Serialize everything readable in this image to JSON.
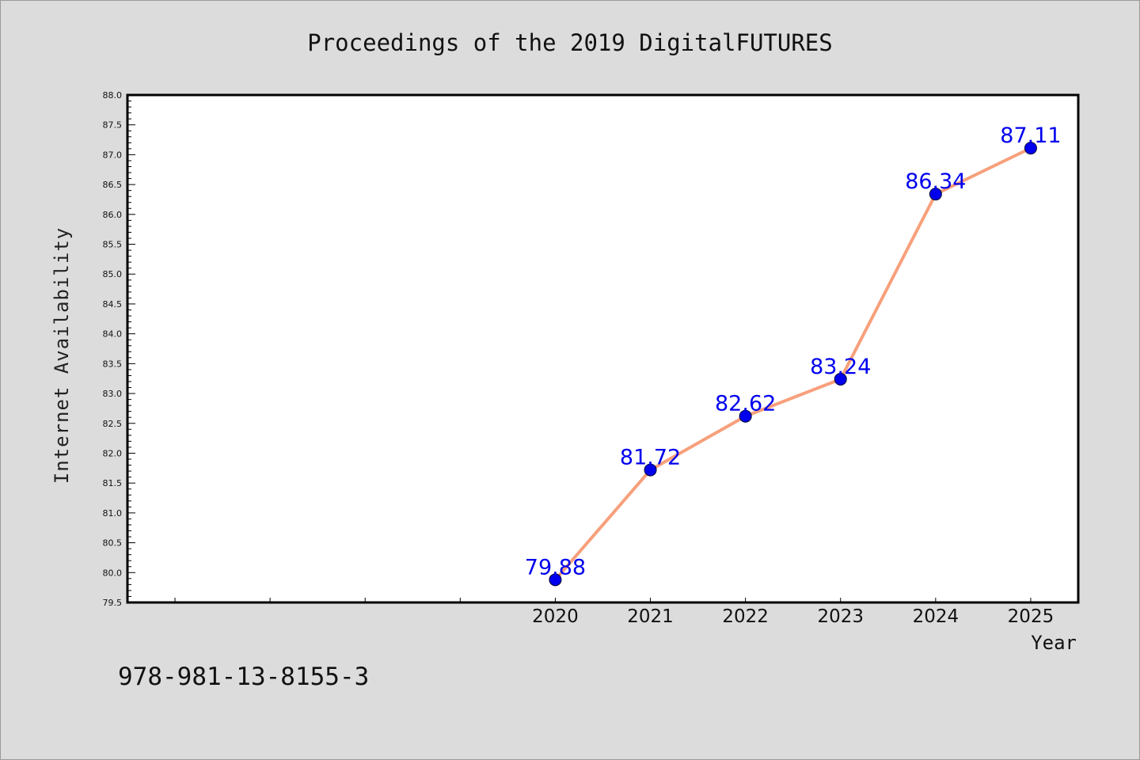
{
  "chart_data": {
    "type": "line",
    "title": "Proceedings of the 2019 DigitalFUTURES",
    "xlabel": "Year",
    "ylabel": "Internet Availability",
    "x": [
      2020,
      2021,
      2022,
      2023,
      2024,
      2025
    ],
    "x_tick_labels": [
      "2020",
      "2021",
      "2022",
      "2023",
      "2024",
      "2025"
    ],
    "series": [
      {
        "values": [
          79.88,
          81.72,
          82.62,
          83.24,
          86.34,
          87.11
        ],
        "data_labels": [
          "79.88",
          "81.72",
          "82.62",
          "83.24",
          "86.34",
          "87.11"
        ],
        "line_color": "#f7a07c",
        "marker_color": "#0000ee"
      }
    ],
    "xlim": [
      2015.5,
      2025.5
    ],
    "ylim": [
      79.5,
      88.0
    ],
    "y_tick_labels": [
      "79.5",
      "80.0",
      "80.5",
      "81.0",
      "81.5",
      "82.0",
      "82.5",
      "83.0",
      "83.5",
      "84.0",
      "84.5",
      "85.0",
      "85.5",
      "86.0",
      "86.5",
      "87.0",
      "87.5",
      "88.0"
    ],
    "grid": false
  },
  "footer": {
    "isbn": "978-981-13-8155-3"
  }
}
